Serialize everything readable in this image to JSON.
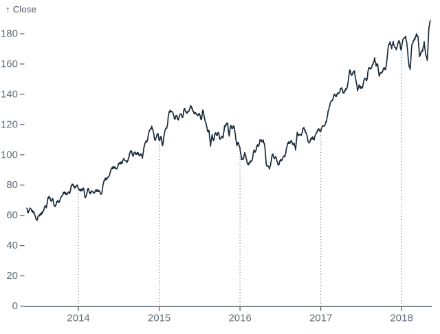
{
  "axis_label": {
    "icon": "↑",
    "text": "Close"
  },
  "colors": {
    "background": "#ffffff",
    "line": "#1b2a39",
    "tick_text": "#5f6b78",
    "axis_line": "#566069",
    "grid_dots": "#7c858f",
    "axis_title_text": "#45505c"
  },
  "chart_data": {
    "type": "line",
    "title": "",
    "xlabel": "",
    "ylabel": "Close",
    "legend": "none",
    "grid": "dotted vertical rules at year ticks, from x-axis up to the line",
    "x_ticks": [
      2014,
      2015,
      2016,
      2017,
      2018
    ],
    "y_ticks": [
      0,
      20,
      40,
      60,
      80,
      100,
      120,
      140,
      160,
      180
    ],
    "x_domain": [
      2013.327,
      2018.373
    ],
    "y_domain": [
      0,
      190
    ],
    "series": [
      {
        "name": "Close",
        "color": "#1b2a39",
        "points": [
          [
            "2013-05-13",
            64.71
          ],
          [
            "2013-05-17",
            61.89
          ],
          [
            "2013-05-24",
            63.59
          ],
          [
            "2013-05-31",
            64.25
          ],
          [
            "2013-06-07",
            63.12
          ],
          [
            "2013-06-14",
            61.44
          ],
          [
            "2013-06-21",
            59.07
          ],
          [
            "2013-06-28",
            56.65
          ],
          [
            "2013-07-05",
            59.63
          ],
          [
            "2013-07-12",
            60.93
          ],
          [
            "2013-07-19",
            60.71
          ],
          [
            "2013-07-26",
            62.99
          ],
          [
            "2013-08-02",
            66.08
          ],
          [
            "2013-08-09",
            64.92
          ],
          [
            "2013-08-16",
            71.76
          ],
          [
            "2013-08-23",
            71.57
          ],
          [
            "2013-08-30",
            69.6
          ],
          [
            "2013-09-06",
            71.17
          ],
          [
            "2013-09-13",
            66.41
          ],
          [
            "2013-09-20",
            66.77
          ],
          [
            "2013-09-27",
            68.96
          ],
          [
            "2013-10-04",
            69.0
          ],
          [
            "2013-10-11",
            70.4
          ],
          [
            "2013-10-18",
            72.7
          ],
          [
            "2013-10-25",
            75.14
          ],
          [
            "2013-11-01",
            74.29
          ],
          [
            "2013-11-08",
            74.37
          ],
          [
            "2013-11-15",
            74.99
          ],
          [
            "2013-11-22",
            74.26
          ],
          [
            "2013-11-29",
            79.44
          ],
          [
            "2013-12-06",
            80.0
          ],
          [
            "2013-12-13",
            79.2
          ],
          [
            "2013-12-20",
            78.43
          ],
          [
            "2013-12-27",
            80.01
          ],
          [
            "2014-01-03",
            77.28
          ],
          [
            "2014-01-10",
            76.13
          ],
          [
            "2014-01-17",
            77.24
          ],
          [
            "2014-01-24",
            78.01
          ],
          [
            "2014-01-31",
            71.51
          ],
          [
            "2014-02-07",
            74.24
          ],
          [
            "2014-02-14",
            77.71
          ],
          [
            "2014-02-21",
            75.04
          ],
          [
            "2014-02-28",
            75.18
          ],
          [
            "2014-03-07",
            75.77
          ],
          [
            "2014-03-14",
            74.96
          ],
          [
            "2014-03-21",
            76.12
          ],
          [
            "2014-03-28",
            76.69
          ],
          [
            "2014-04-04",
            75.97
          ],
          [
            "2014-04-11",
            74.23
          ],
          [
            "2014-04-17",
            75.03
          ],
          [
            "2014-04-25",
            81.71
          ],
          [
            "2014-05-02",
            84.65
          ],
          [
            "2014-05-09",
            83.65
          ],
          [
            "2014-05-16",
            85.36
          ],
          [
            "2014-05-23",
            87.73
          ],
          [
            "2014-05-30",
            90.43
          ],
          [
            "2014-06-06",
            92.22
          ],
          [
            "2014-06-13",
            91.28
          ],
          [
            "2014-06-20",
            90.91
          ],
          [
            "2014-06-27",
            91.98
          ],
          [
            "2014-07-03",
            94.03
          ],
          [
            "2014-07-11",
            95.22
          ],
          [
            "2014-07-18",
            94.43
          ],
          [
            "2014-07-25",
            97.67
          ],
          [
            "2014-08-01",
            96.13
          ],
          [
            "2014-08-08",
            94.74
          ],
          [
            "2014-08-15",
            97.98
          ],
          [
            "2014-08-22",
            101.32
          ],
          [
            "2014-08-29",
            102.5
          ],
          [
            "2014-09-05",
            98.97
          ],
          [
            "2014-09-12",
            101.66
          ],
          [
            "2014-09-19",
            100.96
          ],
          [
            "2014-09-26",
            100.75
          ],
          [
            "2014-10-03",
            99.62
          ],
          [
            "2014-10-10",
            100.73
          ],
          [
            "2014-10-17",
            97.67
          ],
          [
            "2014-10-24",
            105.22
          ],
          [
            "2014-10-31",
            108.0
          ],
          [
            "2014-11-07",
            109.01
          ],
          [
            "2014-11-14",
            114.18
          ],
          [
            "2014-11-21",
            116.47
          ],
          [
            "2014-11-28",
            118.93
          ],
          [
            "2014-12-05",
            115.0
          ],
          [
            "2014-12-12",
            109.73
          ],
          [
            "2014-12-19",
            111.78
          ],
          [
            "2014-12-26",
            113.99
          ],
          [
            "2015-01-02",
            109.33
          ],
          [
            "2015-01-09",
            112.01
          ],
          [
            "2015-01-16",
            105.99
          ],
          [
            "2015-01-23",
            112.98
          ],
          [
            "2015-01-30",
            117.16
          ],
          [
            "2015-02-06",
            118.93
          ],
          [
            "2015-02-13",
            127.08
          ],
          [
            "2015-02-20",
            129.5
          ],
          [
            "2015-02-27",
            128.46
          ],
          [
            "2015-03-06",
            126.6
          ],
          [
            "2015-03-13",
            123.59
          ],
          [
            "2015-03-20",
            125.9
          ],
          [
            "2015-03-27",
            123.25
          ],
          [
            "2015-04-02",
            125.32
          ],
          [
            "2015-04-10",
            127.1
          ],
          [
            "2015-04-17",
            124.75
          ],
          [
            "2015-04-24",
            130.28
          ],
          [
            "2015-05-01",
            128.95
          ],
          [
            "2015-05-08",
            127.62
          ],
          [
            "2015-05-15",
            128.77
          ],
          [
            "2015-05-22",
            132.54
          ],
          [
            "2015-05-29",
            130.28
          ],
          [
            "2015-06-05",
            128.65
          ],
          [
            "2015-06-12",
            127.17
          ],
          [
            "2015-06-19",
            126.6
          ],
          [
            "2015-06-26",
            126.75
          ],
          [
            "2015-07-02",
            126.44
          ],
          [
            "2015-07-10",
            123.28
          ],
          [
            "2015-07-17",
            129.62
          ],
          [
            "2015-07-24",
            124.5
          ],
          [
            "2015-07-31",
            121.3
          ],
          [
            "2015-08-07",
            115.52
          ],
          [
            "2015-08-14",
            115.96
          ],
          [
            "2015-08-21",
            105.76
          ],
          [
            "2015-08-28",
            113.29
          ],
          [
            "2015-09-04",
            109.27
          ],
          [
            "2015-09-11",
            114.21
          ],
          [
            "2015-09-18",
            113.45
          ],
          [
            "2015-09-25",
            114.71
          ],
          [
            "2015-10-02",
            110.38
          ],
          [
            "2015-10-09",
            112.12
          ],
          [
            "2015-10-16",
            111.04
          ],
          [
            "2015-10-23",
            119.08
          ],
          [
            "2015-10-30",
            119.5
          ],
          [
            "2015-11-06",
            121.06
          ],
          [
            "2015-11-13",
            112.34
          ],
          [
            "2015-11-20",
            119.3
          ],
          [
            "2015-11-27",
            117.81
          ],
          [
            "2015-12-04",
            119.03
          ],
          [
            "2015-12-11",
            113.18
          ],
          [
            "2015-12-18",
            106.03
          ],
          [
            "2015-12-24",
            108.03
          ],
          [
            "2015-12-31",
            105.26
          ],
          [
            "2016-01-08",
            96.96
          ],
          [
            "2016-01-15",
            97.13
          ],
          [
            "2016-01-22",
            101.42
          ],
          [
            "2016-01-29",
            97.34
          ],
          [
            "2016-02-05",
            94.02
          ],
          [
            "2016-02-12",
            93.99
          ],
          [
            "2016-02-19",
            96.04
          ],
          [
            "2016-02-26",
            96.91
          ],
          [
            "2016-03-04",
            103.01
          ],
          [
            "2016-03-11",
            102.26
          ],
          [
            "2016-03-18",
            105.92
          ],
          [
            "2016-03-24",
            105.67
          ],
          [
            "2016-04-01",
            109.99
          ],
          [
            "2016-04-08",
            108.66
          ],
          [
            "2016-04-15",
            109.85
          ],
          [
            "2016-04-22",
            105.68
          ],
          [
            "2016-04-29",
            93.74
          ],
          [
            "2016-05-06",
            92.72
          ],
          [
            "2016-05-13",
            90.52
          ],
          [
            "2016-05-20",
            95.22
          ],
          [
            "2016-05-27",
            100.35
          ],
          [
            "2016-06-03",
            97.92
          ],
          [
            "2016-06-10",
            98.83
          ],
          [
            "2016-06-17",
            95.33
          ],
          [
            "2016-06-24",
            93.4
          ],
          [
            "2016-07-01",
            95.89
          ],
          [
            "2016-07-08",
            96.68
          ],
          [
            "2016-07-15",
            98.78
          ],
          [
            "2016-07-22",
            98.66
          ],
          [
            "2016-07-29",
            104.21
          ],
          [
            "2016-08-05",
            107.48
          ],
          [
            "2016-08-12",
            108.18
          ],
          [
            "2016-08-19",
            109.36
          ],
          [
            "2016-08-26",
            106.94
          ],
          [
            "2016-09-02",
            107.73
          ],
          [
            "2016-09-09",
            103.13
          ],
          [
            "2016-09-16",
            114.92
          ],
          [
            "2016-09-23",
            112.71
          ],
          [
            "2016-09-30",
            113.05
          ],
          [
            "2016-10-07",
            114.06
          ],
          [
            "2016-10-14",
            117.63
          ],
          [
            "2016-10-21",
            116.6
          ],
          [
            "2016-10-28",
            113.72
          ],
          [
            "2016-11-04",
            108.84
          ],
          [
            "2016-11-11",
            108.43
          ],
          [
            "2016-11-18",
            110.06
          ],
          [
            "2016-11-25",
            111.79
          ],
          [
            "2016-12-02",
            109.9
          ],
          [
            "2016-12-09",
            113.95
          ],
          [
            "2016-12-16",
            115.97
          ],
          [
            "2016-12-23",
            116.52
          ],
          [
            "2016-12-30",
            115.82
          ],
          [
            "2017-01-06",
            117.91
          ],
          [
            "2017-01-13",
            119.04
          ],
          [
            "2017-01-20",
            120.0
          ],
          [
            "2017-01-27",
            121.95
          ],
          [
            "2017-02-03",
            129.08
          ],
          [
            "2017-02-10",
            132.12
          ],
          [
            "2017-02-17",
            135.72
          ],
          [
            "2017-02-24",
            136.66
          ],
          [
            "2017-03-03",
            139.78
          ],
          [
            "2017-03-10",
            139.14
          ],
          [
            "2017-03-17",
            139.99
          ],
          [
            "2017-03-24",
            140.64
          ],
          [
            "2017-03-31",
            143.66
          ],
          [
            "2017-04-07",
            143.34
          ],
          [
            "2017-04-13",
            141.05
          ],
          [
            "2017-04-21",
            142.27
          ],
          [
            "2017-04-28",
            143.65
          ],
          [
            "2017-05-05",
            148.96
          ],
          [
            "2017-05-12",
            156.1
          ],
          [
            "2017-05-19",
            153.06
          ],
          [
            "2017-05-26",
            153.61
          ],
          [
            "2017-06-02",
            155.45
          ],
          [
            "2017-06-09",
            148.98
          ],
          [
            "2017-06-16",
            142.27
          ],
          [
            "2017-06-23",
            146.28
          ],
          [
            "2017-06-30",
            144.02
          ],
          [
            "2017-07-07",
            144.18
          ],
          [
            "2017-07-14",
            149.04
          ],
          [
            "2017-07-21",
            150.27
          ],
          [
            "2017-07-28",
            149.5
          ],
          [
            "2017-08-04",
            156.39
          ],
          [
            "2017-08-11",
            157.48
          ],
          [
            "2017-08-18",
            157.5
          ],
          [
            "2017-08-25",
            159.86
          ],
          [
            "2017-09-01",
            164.05
          ],
          [
            "2017-09-08",
            158.63
          ],
          [
            "2017-09-15",
            159.88
          ],
          [
            "2017-09-22",
            151.89
          ],
          [
            "2017-09-29",
            154.12
          ],
          [
            "2017-10-06",
            155.3
          ],
          [
            "2017-10-13",
            156.99
          ],
          [
            "2017-10-20",
            156.25
          ],
          [
            "2017-10-27",
            163.05
          ],
          [
            "2017-11-03",
            172.5
          ],
          [
            "2017-11-10",
            174.67
          ],
          [
            "2017-11-17",
            170.15
          ],
          [
            "2017-11-24",
            174.97
          ],
          [
            "2017-12-01",
            171.05
          ],
          [
            "2017-12-08",
            169.37
          ],
          [
            "2017-12-15",
            173.97
          ],
          [
            "2017-12-22",
            175.01
          ],
          [
            "2017-12-29",
            169.23
          ],
          [
            "2018-01-05",
            175.0
          ],
          [
            "2018-01-12",
            177.09
          ],
          [
            "2018-01-19",
            178.46
          ],
          [
            "2018-01-26",
            171.51
          ],
          [
            "2018-02-02",
            160.5
          ],
          [
            "2018-02-09",
            156.41
          ],
          [
            "2018-02-16",
            172.43
          ],
          [
            "2018-02-23",
            175.5
          ],
          [
            "2018-03-02",
            176.21
          ],
          [
            "2018-03-09",
            179.98
          ],
          [
            "2018-03-16",
            178.02
          ],
          [
            "2018-03-23",
            164.94
          ],
          [
            "2018-03-29",
            167.78
          ],
          [
            "2018-04-06",
            168.38
          ],
          [
            "2018-04-13",
            174.73
          ],
          [
            "2018-04-20",
            165.72
          ],
          [
            "2018-04-27",
            162.32
          ],
          [
            "2018-05-04",
            183.83
          ],
          [
            "2018-05-11",
            188.59
          ]
        ]
      }
    ]
  }
}
